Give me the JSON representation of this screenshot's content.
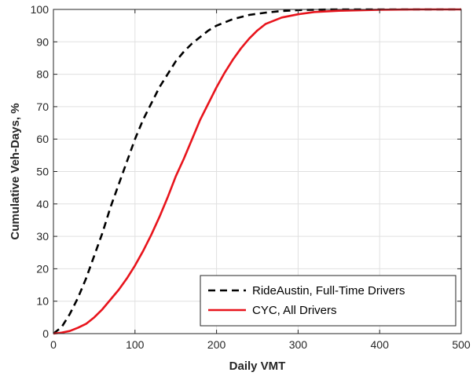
{
  "chart_data": {
    "type": "line",
    "title": "",
    "xlabel": "Daily VMT",
    "ylabel": "Cumulative Veh-Days, %",
    "xlim": [
      0,
      500
    ],
    "ylim": [
      0,
      100
    ],
    "x_ticks": [
      "0",
      "100",
      "200",
      "300",
      "400",
      "500"
    ],
    "y_ticks": [
      "0",
      "10",
      "20",
      "30",
      "40",
      "50",
      "60",
      "70",
      "80",
      "90",
      "100"
    ],
    "grid": true,
    "legend_position": "bottom-right",
    "series": [
      {
        "name": "RideAustin, Full-Time Drivers",
        "color": "#000000",
        "style": "dashed",
        "x": [
          0,
          10,
          20,
          30,
          40,
          50,
          60,
          70,
          80,
          90,
          100,
          110,
          120,
          130,
          140,
          150,
          160,
          170,
          180,
          190,
          200,
          220,
          240,
          260,
          280,
          300,
          320,
          340,
          400,
          500
        ],
        "y": [
          0,
          2,
          6,
          11,
          17,
          24,
          31,
          39,
          46,
          53,
          60,
          66,
          71,
          76,
          80,
          84,
          87,
          89.5,
          91.5,
          93.5,
          95,
          97,
          98.3,
          99,
          99.5,
          99.8,
          99.9,
          100,
          100,
          100
        ]
      },
      {
        "name": "CYC, All Drivers",
        "color": "#e8141c",
        "style": "solid",
        "x": [
          0,
          10,
          20,
          30,
          40,
          50,
          60,
          70,
          80,
          90,
          100,
          110,
          120,
          130,
          140,
          150,
          160,
          170,
          180,
          190,
          200,
          210,
          220,
          230,
          240,
          250,
          260,
          280,
          300,
          320,
          350,
          400,
          450,
          500
        ],
        "y": [
          0,
          0.3,
          0.8,
          1.8,
          3,
          5,
          7.5,
          10.5,
          13.5,
          17,
          21,
          25.5,
          30.5,
          36,
          42,
          48.5,
          54,
          60,
          66,
          71,
          76,
          80.5,
          84.5,
          88,
          91,
          93.5,
          95.5,
          97.5,
          98.5,
          99.2,
          99.6,
          99.9,
          100,
          100
        ]
      }
    ]
  }
}
